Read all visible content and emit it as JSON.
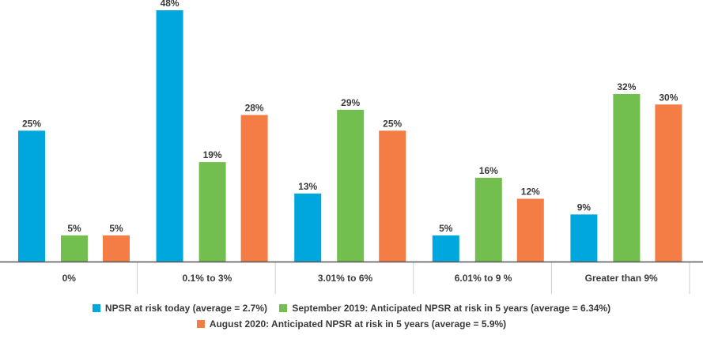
{
  "chart_data": {
    "type": "bar",
    "title": "",
    "xlabel": "",
    "ylabel": "",
    "ylim": [
      0,
      48
    ],
    "grid": false,
    "legend_placement": "bottom",
    "categories": [
      "0%",
      "0.1% to 3%",
      "3.01% to 6%",
      "6.01% to 9 %",
      "Greater than 9%"
    ],
    "series": [
      {
        "name": "NPSR at risk today (average = 2.7%)",
        "color": "#00a6de",
        "values": [
          25,
          48,
          13,
          5,
          9
        ],
        "labels": [
          "25%",
          "48%",
          "13%",
          "5%",
          "9%"
        ]
      },
      {
        "name": "September 2019: Anticipated NPSR at risk in 5 years (average = 6.34%)",
        "color": "#72bf50",
        "values": [
          5,
          19,
          29,
          16,
          32
        ],
        "labels": [
          "5%",
          "19%",
          "29%",
          "16%",
          "32%"
        ]
      },
      {
        "name": "August 2020: Anticipated NPSR at risk in 5 years (average = 5.9%)",
        "color": "#f47c45",
        "values": [
          5,
          28,
          25,
          12,
          30
        ],
        "labels": [
          "5%",
          "28%",
          "25%",
          "12%",
          "30%"
        ]
      }
    ]
  }
}
